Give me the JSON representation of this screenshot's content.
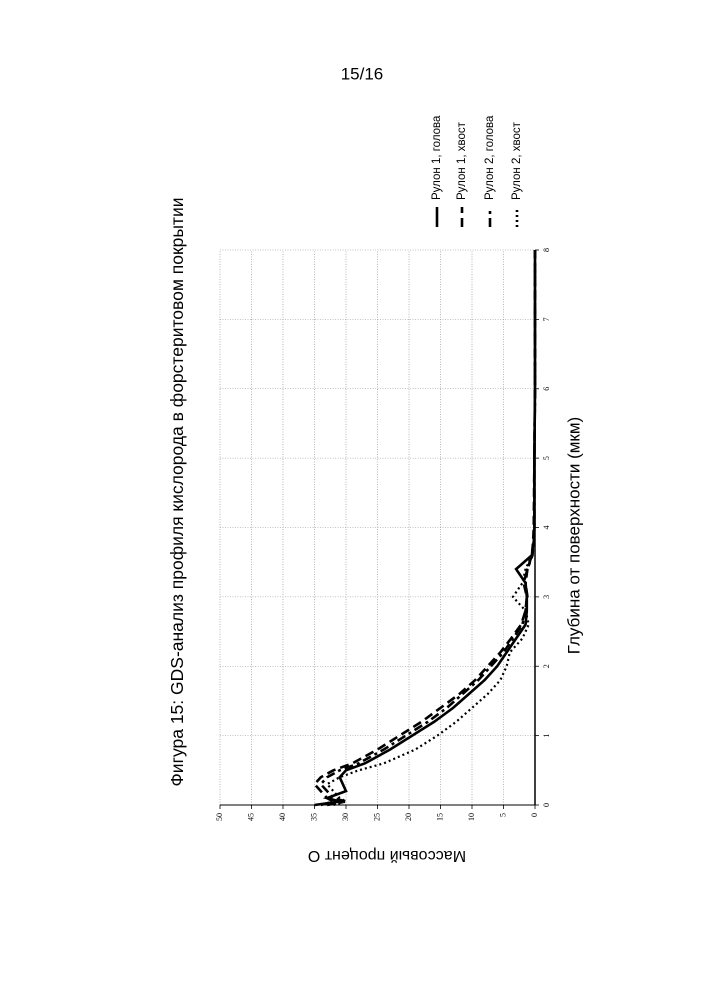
{
  "page_label": "15/16",
  "chart_data": {
    "type": "line",
    "title": "Фигура 15: GDS-анализ профиля кислорода в форстеритовом покрытии",
    "x_label": "Глубина от поверхности (мкм)",
    "y_label": "Массовый процент O",
    "x": [
      0,
      0.05,
      0.1,
      0.2,
      0.3,
      0.4,
      0.5,
      0.6,
      0.8,
      1,
      1.2,
      1.4,
      1.6,
      1.8,
      2,
      2.2,
      2.4,
      2.6,
      2.8,
      3,
      3.2,
      3.4,
      3.6,
      3.8,
      4,
      5,
      6,
      7,
      8
    ],
    "series": [
      {
        "name": "Рулон 1, голова",
        "color": "#000000",
        "style": "solid",
        "values": [
          35,
          31,
          33,
          30,
          30.5,
          31,
          30,
          27,
          23,
          19.5,
          16,
          13,
          10.5,
          8,
          6,
          4.5,
          3,
          1.5,
          1.3,
          1.3,
          1.5,
          3,
          0.5,
          0.2,
          0.1,
          0.1,
          0,
          0,
          0
        ]
      },
      {
        "name": "Рулон 1, хвост",
        "color": "#000000",
        "style": "dashed",
        "values": [
          34,
          32,
          33,
          34,
          35,
          34,
          32,
          29,
          25,
          21.5,
          18,
          15,
          12,
          9.5,
          7.5,
          5.5,
          3.8,
          2.2,
          1.5,
          1.3,
          1.8,
          1.2,
          0.5,
          0.3,
          0.2,
          0.1,
          0,
          0,
          0
        ]
      },
      {
        "name": "Рулон 2, голова",
        "color": "#000000",
        "style": "dashdot",
        "values": [
          33,
          30,
          32,
          33,
          34,
          33,
          31,
          28,
          24,
          20.5,
          17,
          14,
          11.5,
          9,
          7,
          5,
          3.5,
          2,
          1.5,
          1.2,
          1.5,
          1.2,
          0.4,
          0.2,
          0.1,
          0.1,
          0,
          0,
          0
        ]
      },
      {
        "name": "Рулон 2, хвост",
        "color": "#000000",
        "style": "dotted",
        "values": [
          32,
          30,
          31,
          32,
          33,
          31,
          28,
          24,
          19,
          15.5,
          12.5,
          10,
          7.5,
          5.5,
          4.5,
          4,
          2,
          1,
          1.5,
          3.5,
          2,
          1.5,
          0.5,
          0.2,
          0.1,
          0.1,
          0,
          0,
          0
        ]
      }
    ],
    "xlim": [
      0,
      8
    ],
    "xticks": [
      0,
      1,
      2,
      3,
      4,
      5,
      6,
      7,
      8
    ],
    "ylim": [
      0,
      50
    ],
    "yticks": [
      0,
      5,
      10,
      15,
      20,
      25,
      30,
      35,
      40,
      45,
      50
    ],
    "grid": true,
    "legend": "right",
    "rotation": -90
  }
}
